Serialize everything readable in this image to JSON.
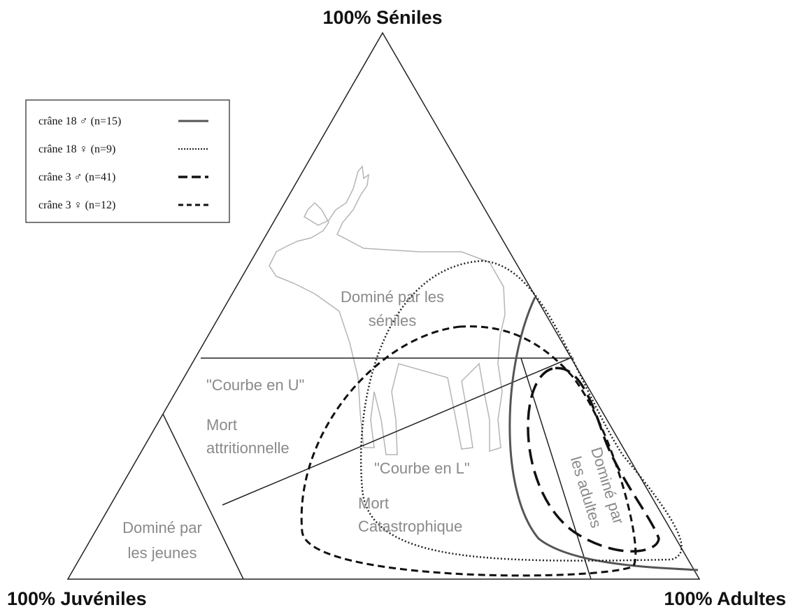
{
  "vertices": {
    "top": "100% Séniles",
    "left": "100% Juvéniles",
    "right": "100% Adultes"
  },
  "legend": [
    "crâne 18 ♂ (n=15)",
    "crâne 18 ♀ (n=9)",
    "crâne 3 ♂ (n=41)",
    "crâne 3 ♀ (n=12)"
  ],
  "regions": [
    {
      "lines": [
        "Dominé par les",
        "séniles"
      ]
    },
    {
      "lines": [
        "\"Courbe en U\""
      ]
    },
    {
      "lines": [
        "Mort",
        "attritionnelle"
      ]
    },
    {
      "lines": [
        "\"Courbe en L\""
      ]
    },
    {
      "lines": [
        "Mort",
        "Catastrophique"
      ]
    },
    {
      "lines": [
        "Dominé par",
        "les jeunes"
      ]
    },
    {
      "lines": [
        "Dominé par",
        "les adultes"
      ]
    }
  ]
}
